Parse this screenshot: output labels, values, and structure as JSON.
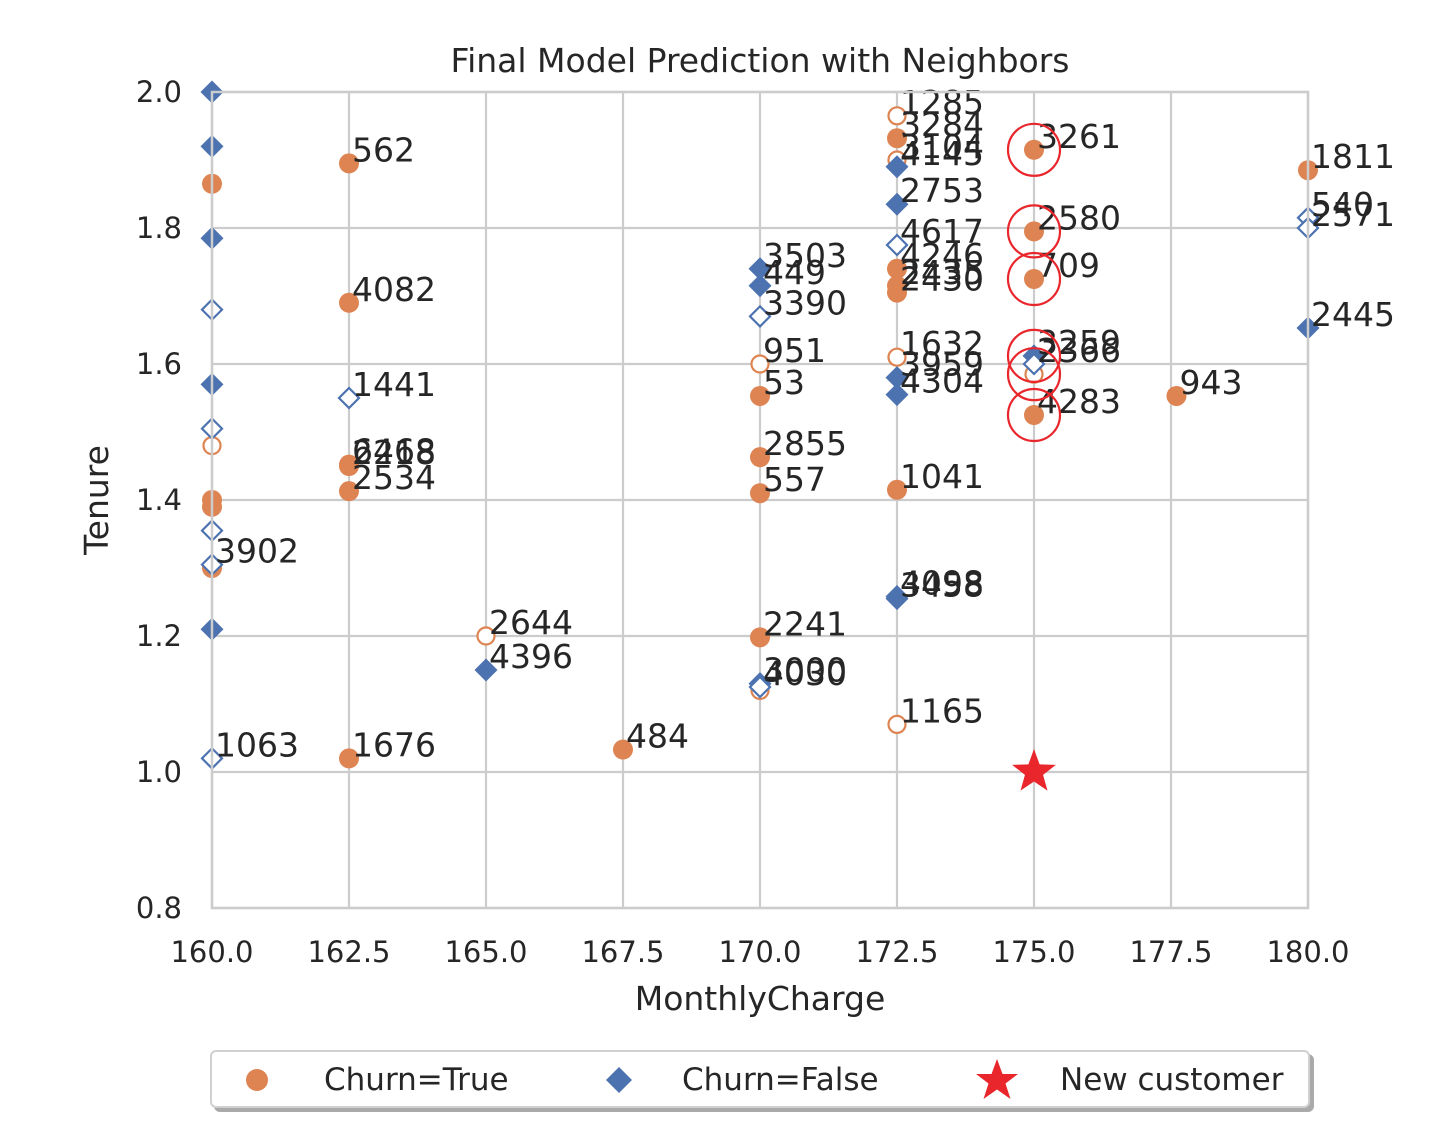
{
  "chart_data": {
    "type": "scatter",
    "title": "Final Model Prediction with Neighbors",
    "xlabel": "MonthlyCharge",
    "ylabel": "Tenure",
    "xlim": [
      160.0,
      180.0
    ],
    "ylim": [
      0.8,
      2.0
    ],
    "xticks": [
      "160.0",
      "162.5",
      "165.0",
      "167.5",
      "170.0",
      "172.5",
      "175.0",
      "177.5",
      "180.0"
    ],
    "yticks": [
      "0.8",
      "1.0",
      "1.2",
      "1.4",
      "1.6",
      "1.8",
      "2.0"
    ],
    "grid": true,
    "legend_placement": "bottom-center, below plot",
    "colors": {
      "churn_true": "#dd8452",
      "churn_false": "#4c72b0",
      "new_customer": "#e8262b",
      "neighbor_ring": "#e8262b",
      "grid": "#cccccc"
    },
    "series": [
      {
        "name": "Churn=True",
        "marker": "circle",
        "points": [
          {
            "x": 162.5,
            "y": 1.895,
            "label": "562",
            "filled": true
          },
          {
            "x": 160.0,
            "y": 1.865,
            "label": "",
            "filled": true
          },
          {
            "x": 162.5,
            "y": 1.69,
            "label": "4082",
            "filled": true
          },
          {
            "x": 160.0,
            "y": 1.48,
            "label": "",
            "filled": false
          },
          {
            "x": 162.5,
            "y": 1.45,
            "label": "2218",
            "filled": true
          },
          {
            "x": 162.5,
            "y": 1.452,
            "label": "6468",
            "filled": true
          },
          {
            "x": 162.5,
            "y": 1.413,
            "label": "2534",
            "filled": true
          },
          {
            "x": 160.0,
            "y": 1.4,
            "label": "",
            "filled": true
          },
          {
            "x": 160.0,
            "y": 1.39,
            "label": "",
            "filled": true
          },
          {
            "x": 160.0,
            "y": 1.3,
            "label": "",
            "filled": true
          },
          {
            "x": 165.0,
            "y": 1.2,
            "label": "2644",
            "filled": false
          },
          {
            "x": 162.5,
            "y": 1.02,
            "label": "1676",
            "filled": true
          },
          {
            "x": 167.5,
            "y": 1.033,
            "label": "484",
            "filled": true
          },
          {
            "x": 170.0,
            "y": 1.6,
            "label": "951",
            "filled": false
          },
          {
            "x": 170.0,
            "y": 1.553,
            "label": "53",
            "filled": true
          },
          {
            "x": 170.0,
            "y": 1.463,
            "label": "2855",
            "filled": true
          },
          {
            "x": 170.0,
            "y": 1.41,
            "label": "557",
            "filled": true
          },
          {
            "x": 170.0,
            "y": 1.198,
            "label": "2241",
            "filled": true
          },
          {
            "x": 170.0,
            "y": 1.12,
            "label": "",
            "filled": false
          },
          {
            "x": 172.5,
            "y": 1.965,
            "label": "1285",
            "filled": false
          },
          {
            "x": 172.5,
            "y": 1.932,
            "label": "3284",
            "filled": true
          },
          {
            "x": 172.5,
            "y": 1.9,
            "label": "3104",
            "filled": false
          },
          {
            "x": 172.5,
            "y": 1.74,
            "label": "4246",
            "filled": true
          },
          {
            "x": 172.5,
            "y": 1.715,
            "label": "2435",
            "filled": true
          },
          {
            "x": 172.5,
            "y": 1.705,
            "label": "2430",
            "filled": true
          },
          {
            "x": 172.5,
            "y": 1.61,
            "label": "1632",
            "filled": false
          },
          {
            "x": 172.5,
            "y": 1.415,
            "label": "1041",
            "filled": true
          },
          {
            "x": 172.5,
            "y": 1.07,
            "label": "1165",
            "filled": false
          },
          {
            "x": 175.0,
            "y": 1.915,
            "label": "3261",
            "filled": true
          },
          {
            "x": 175.0,
            "y": 1.795,
            "label": "2580",
            "filled": true
          },
          {
            "x": 175.0,
            "y": 1.725,
            "label": "709",
            "filled": true
          },
          {
            "x": 175.0,
            "y": 1.585,
            "label": "",
            "filled": false
          },
          {
            "x": 175.0,
            "y": 1.525,
            "label": "4283",
            "filled": true
          },
          {
            "x": 177.6,
            "y": 1.553,
            "label": "943",
            "filled": true
          },
          {
            "x": 180.0,
            "y": 1.885,
            "label": "1811",
            "filled": true
          }
        ]
      },
      {
        "name": "Churn=False",
        "marker": "diamond",
        "points": [
          {
            "x": 160.0,
            "y": 2.0,
            "label": "",
            "filled": true
          },
          {
            "x": 160.0,
            "y": 1.92,
            "label": "",
            "filled": true
          },
          {
            "x": 160.0,
            "y": 1.785,
            "label": "",
            "filled": true
          },
          {
            "x": 160.0,
            "y": 1.68,
            "label": "",
            "filled": false
          },
          {
            "x": 160.0,
            "y": 1.57,
            "label": "",
            "filled": true
          },
          {
            "x": 160.0,
            "y": 1.505,
            "label": "",
            "filled": false
          },
          {
            "x": 160.0,
            "y": 1.355,
            "label": "",
            "filled": false
          },
          {
            "x": 160.0,
            "y": 1.305,
            "label": "3902",
            "filled": false
          },
          {
            "x": 160.0,
            "y": 1.21,
            "label": "",
            "filled": true
          },
          {
            "x": 160.0,
            "y": 1.02,
            "label": "1063",
            "filled": false
          },
          {
            "x": 162.5,
            "y": 1.55,
            "label": "1441",
            "filled": false
          },
          {
            "x": 165.0,
            "y": 1.15,
            "label": "4396",
            "filled": true
          },
          {
            "x": 170.0,
            "y": 1.74,
            "label": "3503",
            "filled": true
          },
          {
            "x": 170.0,
            "y": 1.715,
            "label": "449",
            "filled": true
          },
          {
            "x": 170.0,
            "y": 1.67,
            "label": "3390",
            "filled": false
          },
          {
            "x": 170.0,
            "y": 1.13,
            "label": "3000",
            "filled": true
          },
          {
            "x": 170.0,
            "y": 1.125,
            "label": "4030",
            "filled": false
          },
          {
            "x": 172.5,
            "y": 1.89,
            "label": "4145",
            "filled": true
          },
          {
            "x": 172.5,
            "y": 1.835,
            "label": "2753",
            "filled": true
          },
          {
            "x": 172.5,
            "y": 1.775,
            "label": "4617",
            "filled": false
          },
          {
            "x": 172.5,
            "y": 1.58,
            "label": "3959",
            "filled": true
          },
          {
            "x": 172.5,
            "y": 1.555,
            "label": "4304",
            "filled": true
          },
          {
            "x": 172.5,
            "y": 1.258,
            "label": "4098",
            "filled": true
          },
          {
            "x": 172.5,
            "y": 1.255,
            "label": "3458",
            "filled": true
          },
          {
            "x": 175.0,
            "y": 1.612,
            "label": "3259",
            "filled": true
          },
          {
            "x": 175.0,
            "y": 1.6,
            "label": "2366",
            "filled": false
          },
          {
            "x": 180.0,
            "y": 1.815,
            "label": "540",
            "filled": false
          },
          {
            "x": 180.0,
            "y": 1.8,
            "label": "2571",
            "filled": false
          },
          {
            "x": 180.0,
            "y": 1.653,
            "label": "2445",
            "filled": true
          }
        ]
      },
      {
        "name": "New customer",
        "marker": "star",
        "points": [
          {
            "x": 175.0,
            "y": 1.0
          }
        ]
      }
    ],
    "neighbors": [
      {
        "x": 175.0,
        "y": 1.915
      },
      {
        "x": 175.0,
        "y": 1.795
      },
      {
        "x": 175.0,
        "y": 1.725
      },
      {
        "x": 175.0,
        "y": 1.612
      },
      {
        "x": 175.0,
        "y": 1.585
      },
      {
        "x": 175.0,
        "y": 1.525
      }
    ],
    "legend": [
      {
        "label": "Churn=True",
        "marker": "circle",
        "color": "#dd8452"
      },
      {
        "label": "Churn=False",
        "marker": "diamond",
        "color": "#4c72b0"
      },
      {
        "label": "New customer",
        "marker": "star",
        "color": "#e8262b"
      }
    ]
  }
}
